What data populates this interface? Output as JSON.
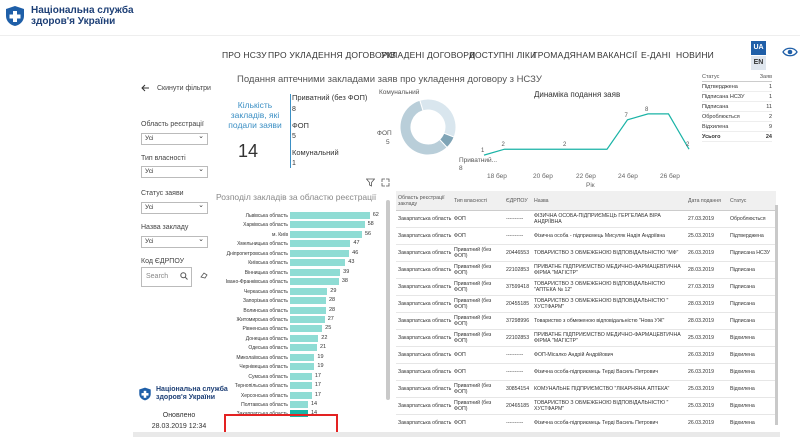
{
  "header": {
    "org_line1": "Національна служба",
    "org_line2": "здоров'я України"
  },
  "nav": {
    "items": [
      "ПРО НСЗУ",
      "ПРО УКЛАДЕННЯ ДОГОВОРІВ",
      "УКЛАДЕНІ ДОГОВОРИ",
      "ДОСТУПНІ ЛІКИ",
      "ГРОМАДЯНАМ",
      "ВАКАНСІЇ",
      "Е-ДАНІ",
      "НОВИНИ"
    ],
    "lang_ua": "UA",
    "lang_en": "EN"
  },
  "dashboard": {
    "title": "Подання аптечними закладами заяв про укладення договору з НСЗУ",
    "reset_label": "Скинути фільтри",
    "filters": [
      {
        "label": "Область реєстрації",
        "value": "Усі"
      },
      {
        "label": "Тип власності",
        "value": "Усі"
      },
      {
        "label": "Статус заяви",
        "value": "Усі"
      },
      {
        "label": "Назва закладу",
        "value": "Усі"
      }
    ],
    "edrpou_label": "Код ЄДРПОУ",
    "search_placeholder": "Search",
    "kpi": {
      "label": "Кількість закладів, які подали заяви",
      "value": "14",
      "rows": [
        {
          "label": "Приватний (без ФОП)",
          "value": "8"
        },
        {
          "label": "ФОП",
          "value": "5"
        },
        {
          "label": "Комунальний",
          "value": "1"
        }
      ]
    },
    "donut": {
      "labels": {
        "top": "Комунальний",
        "left": "ФОП",
        "left_value": "5",
        "right": "Приватний...",
        "right_value": "8"
      }
    },
    "line_chart": {
      "title": "Динаміка подання заяв",
      "x_axis_label": "Рік"
    },
    "status_table": {
      "header_status": "Статус",
      "header_count": "Заяв",
      "rows": [
        {
          "status": "Підтверджена",
          "count": "1"
        },
        {
          "status": "Підписана НСЗУ",
          "count": "1"
        },
        {
          "status": "Підписана",
          "count": "11"
        },
        {
          "status": "Оброблюється",
          "count": "2"
        },
        {
          "status": "Відхилена",
          "count": "9"
        }
      ],
      "total_label": "Усього",
      "total_value": "24"
    },
    "bar_chart_title": "Розподіл закладів за областю реєстрації",
    "updated_label": "Оновлено",
    "updated_value": "28.03.2019 12:34",
    "logo2_line1": "Національна служба",
    "logo2_line2": "здоров'я України"
  },
  "chart_data": [
    {
      "type": "pie",
      "title": "",
      "categories": [
        "Приватний (без ФОП)",
        "ФОП",
        "Комунальний"
      ],
      "values": [
        8,
        5,
        1
      ],
      "colors": [
        "#b9ced9",
        "#d9e6ee",
        "#7fa4b6"
      ]
    },
    {
      "type": "line",
      "title": "Динаміка подання заяв",
      "x": [
        "16 бер",
        "18 бер",
        "19 бер",
        "20 бер",
        "21 бер",
        "22 бер",
        "23 бер",
        "25 бер",
        "26 бер",
        "27 бер",
        "28 бер"
      ],
      "x_ticks": [
        "18 бер",
        "20 бер",
        "22 бер",
        "24 бер",
        "26 бер"
      ],
      "values": [
        1,
        2,
        2,
        2,
        2,
        2,
        2,
        7,
        8,
        8,
        2
      ],
      "xlabel": "Рік",
      "color": "#1ab3a6"
    },
    {
      "type": "bar",
      "title": "Розподіл закладів за областю реєстрації",
      "orientation": "horizontal",
      "categories": [
        "Львівська область",
        "Харківська область",
        "м. Київ",
        "Хмельницька область",
        "Дніпропетровська область",
        "Київська область",
        "Вінницька область",
        "Івано-Франківська область",
        "Черкаська область",
        "Запорізька область",
        "Волинська область",
        "Житомирська область",
        "Рівненська область",
        "Донецька область",
        "Одеська область",
        "Миколаївська область",
        "Чернівецька область",
        "Сумська область",
        "Тернопільська область",
        "Херсонська область",
        "Полтавська область",
        "Закарпатська область"
      ],
      "values": [
        62,
        58,
        56,
        47,
        46,
        43,
        39,
        38,
        29,
        28,
        28,
        27,
        25,
        22,
        21,
        19,
        19,
        17,
        17,
        17,
        14,
        14
      ],
      "selected": "Закарпатська область",
      "xlim": [
        0,
        70
      ],
      "color": "#8fdcd4",
      "selected_color": "#1ab3a6"
    }
  ],
  "table": {
    "headers": [
      "Область реєстрації закладу",
      "Тип власності",
      "ЄДРПОУ",
      "Назва",
      "Дата подання",
      "Статус"
    ],
    "rows": [
      [
        "Закарпатська область",
        "ФОП",
        "----------",
        "ФІЗИЧНА ОСОБА-ПІДПРИЄМЕЦЬ ГЕРГЕЛАБА ВІРА АНДРІЇВНА",
        "27.03.2019",
        "Оброблюється"
      ],
      [
        "Закарпатська область",
        "ФОП",
        "----------",
        "Фізична особа - підприємець Мисуляк Надія Андріївна",
        "25.03.2019",
        "Підтверджена"
      ],
      [
        "Закарпатська область",
        "Приватний (без ФОП)",
        "20446553",
        "ТОВАРИСТВО З ОБМЕЖЕНОЮ ВІДПОВІДАЛЬНІСТЮ \"МФ\"",
        "26.03.2019",
        "Підписана НСЗУ"
      ],
      [
        "Закарпатська область",
        "Приватний (без ФОП)",
        "22102853",
        "ПРИВАТНЕ ПІДПРИЄМСТВО МЕДИЧНО-ФАРМАЦЕВТИЧНА ФІРМА \"МАГІСТР\"",
        "28.03.2019",
        "Підписана"
      ],
      [
        "Закарпатська область",
        "Приватний (без ФОП)",
        "37599418",
        "ТОВАРИСТВО З ОБМЕЖЕНОЮ ВІДПОВІДАЛЬНІСТЮ \"АПТЕКА № 12\"",
        "27.03.2019",
        "Підписана"
      ],
      [
        "Закарпатська область",
        "Приватний (без ФОП)",
        "20455185",
        "ТОВАРИСТВО З ОБМЕЖЕНОЮ ВІДПОВІДАЛЬНІСТЮ \" ХУСТФАРМ\"",
        "28.03.2019",
        "Підписана"
      ],
      [
        "Закарпатська область",
        "Приватний (без ФОП)",
        "37298996",
        "Товариство з обмеженою відповідальністю \"Нова УЖ\"",
        "28.03.2019",
        "Підписана"
      ],
      [
        "Закарпатська область",
        "Приватний (без ФОП)",
        "22102853",
        "ПРИВАТНЕ ПІДПРИЄМСТВО МЕДИЧНО-ФАРМАЦЕВТИЧНА ФІРМА \"МАГІСТР\"",
        "25.03.2019",
        "Відхилена"
      ],
      [
        "Закарпатська область",
        "ФОП",
        "----------",
        "ФОП-Місалко Андрій Андрійович",
        "26.03.2019",
        "Відхилена"
      ],
      [
        "Закарпатська область",
        "ФОП",
        "----------",
        "Фізична особа-підприємець Терді Василь Петрович",
        "26.03.2019",
        "Відхилена"
      ],
      [
        "Закарпатська область",
        "Приватний (без ФОП)",
        "30854154",
        "КОМУНАЛЬНЕ ПІДПРИЄМСТВО \"ЛІКАРНЯНА АПТЕКА\"",
        "25.03.2019",
        "Відхилена"
      ],
      [
        "Закарпатська область",
        "Приватний (без ФОП)",
        "20465185",
        "ТОВАРИСТВО З ОБМЕЖЕНОЮ ВІДПОВІДАЛЬНІСТЮ \" ХУСТФАРМ\"",
        "25.03.2019",
        "Відхилена"
      ],
      [
        "Закарпатська область",
        "ФОП",
        "----------",
        "Фізична особа-підприємець Терді Василь Петрович",
        "26.03.2019",
        "Відхилена"
      ]
    ]
  }
}
